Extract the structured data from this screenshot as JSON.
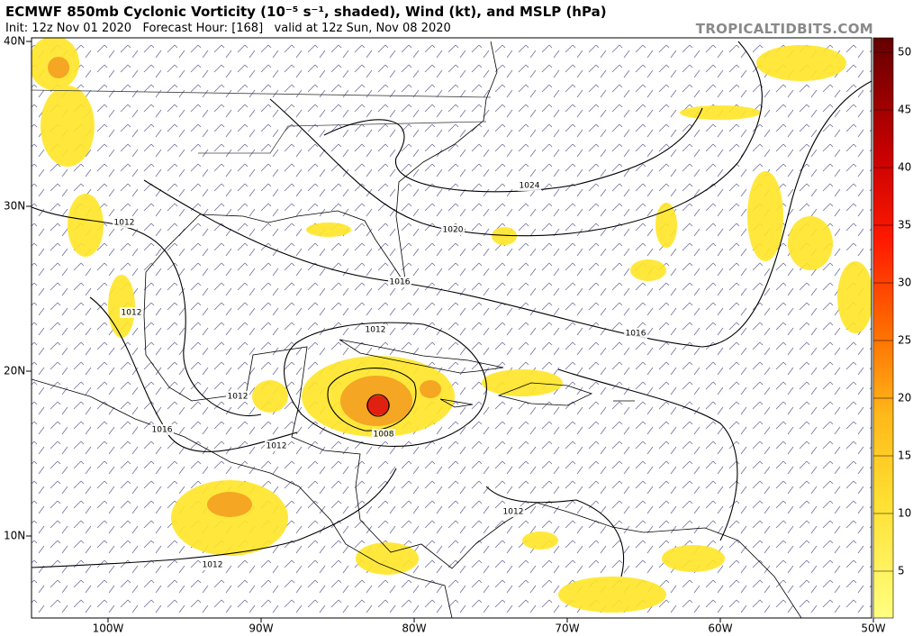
{
  "header": {
    "title": "ECMWF 850mb Cyclonic Vorticity (10⁻⁵ s⁻¹, shaded), Wind (kt), and MSLP (hPa)",
    "subtitle": "Init: 12z Nov 01 2020   Forecast Hour: [168]   valid at 12z Sun, Nov 08 2020",
    "credit": "TROPICALTIDBITS.COM"
  },
  "map": {
    "lat_labels": [
      "40N",
      "30N",
      "20N",
      "10N"
    ],
    "lon_labels": [
      "100W",
      "90W",
      "80W",
      "70W",
      "60W",
      "50W"
    ],
    "isobar_labels": [
      "1024",
      "1020",
      "1016",
      "1016",
      "1012",
      "1012",
      "1012",
      "1012",
      "1016",
      "1012",
      "1008",
      "1012",
      "1012"
    ]
  },
  "colorbar": {
    "ticks": [
      50,
      45,
      40,
      35,
      30,
      25,
      20,
      15,
      10,
      5
    ]
  }
}
